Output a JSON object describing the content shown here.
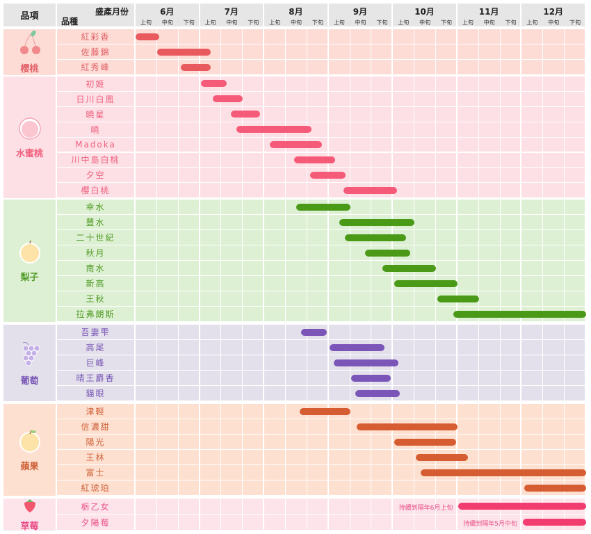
{
  "header": {
    "category": "品項",
    "variety": "品種",
    "season": "盛產月份"
  },
  "months": [
    "6月",
    "7月",
    "8月",
    "9月",
    "10月",
    "11月",
    "12月"
  ],
  "decades": [
    "上旬",
    "中旬",
    "下旬"
  ],
  "chart_data": {
    "type": "gantt",
    "title": "",
    "x_unit": "decade index from 6月上旬 (0) to 12月下旬 end (21)",
    "xlim": [
      0,
      21
    ],
    "groups": [
      {
        "name": "櫻桃",
        "icon": "cherry-icon",
        "bg": "#fddcd6",
        "bar": "#e85a5e",
        "text": "#e26268",
        "items": [
          {
            "name": "紅彩香",
            "start": 0,
            "end": 1.1
          },
          {
            "name": "佐藤錦",
            "start": 1.0,
            "end": 3.5
          },
          {
            "name": "紅秀峰",
            "start": 2.1,
            "end": 3.5
          }
        ]
      },
      {
        "name": "水蜜桃",
        "icon": "peach-icon",
        "bg": "#fde0e6",
        "bar": "#f55a78",
        "text": "#ef5f7d",
        "items": [
          {
            "name": "初姬",
            "start": 3.05,
            "end": 4.25
          },
          {
            "name": "日川白鳳",
            "start": 3.6,
            "end": 5.0
          },
          {
            "name": "曉星",
            "start": 4.45,
            "end": 5.8
          },
          {
            "name": "曉",
            "start": 4.7,
            "end": 8.2
          },
          {
            "name": "Madoka",
            "start": 6.25,
            "end": 8.7
          },
          {
            "name": "川中島白桃",
            "start": 7.4,
            "end": 9.3
          },
          {
            "name": "夕空",
            "start": 8.15,
            "end": 9.8
          },
          {
            "name": "櫻白桃",
            "start": 9.7,
            "end": 12.2
          }
        ]
      },
      {
        "name": "梨子",
        "icon": "pear-icon",
        "bg": "#def0d4",
        "bar": "#4a9a18",
        "text": "#4e9a24",
        "items": [
          {
            "name": "幸水",
            "start": 7.5,
            "end": 10.0
          },
          {
            "name": "豐水",
            "start": 9.5,
            "end": 13.0
          },
          {
            "name": "二十世紀",
            "start": 9.75,
            "end": 12.6
          },
          {
            "name": "秋月",
            "start": 10.7,
            "end": 12.8
          },
          {
            "name": "南水",
            "start": 11.5,
            "end": 14.0
          },
          {
            "name": "新高",
            "start": 12.05,
            "end": 15.0
          },
          {
            "name": "王秋",
            "start": 14.05,
            "end": 16.0
          },
          {
            "name": "拉弗朗斯",
            "start": 14.8,
            "end": 21
          }
        ]
      },
      {
        "name": "葡萄",
        "icon": "grape-icon",
        "bg": "#e3e0ec",
        "bar": "#7c55b8",
        "text": "#7a58b5",
        "items": [
          {
            "name": "吾妻雫",
            "start": 7.7,
            "end": 8.9
          },
          {
            "name": "高尾",
            "start": 9.05,
            "end": 11.6
          },
          {
            "name": "巨峰",
            "start": 9.25,
            "end": 12.25
          },
          {
            "name": "晴王麝香",
            "start": 10.05,
            "end": 11.9
          },
          {
            "name": "貓眼",
            "start": 10.25,
            "end": 12.3
          }
        ]
      },
      {
        "name": "蘋果",
        "icon": "apple-icon",
        "bg": "#fde0d0",
        "bar": "#d65d31",
        "text": "#cf623a",
        "items": [
          {
            "name": "津輕",
            "start": 7.65,
            "end": 10.0
          },
          {
            "name": "信濃甜",
            "start": 10.3,
            "end": 15.0
          },
          {
            "name": "陽光",
            "start": 12.05,
            "end": 14.95
          },
          {
            "name": "王林",
            "start": 13.05,
            "end": 15.5
          },
          {
            "name": "富士",
            "start": 13.3,
            "end": 21
          },
          {
            "name": "紅琥珀",
            "start": 18.1,
            "end": 21
          }
        ]
      },
      {
        "name": "草莓",
        "icon": "strawberry-icon",
        "bg": "#fde4ea",
        "bar": "#f23c6f",
        "text": "#e9508a",
        "items": [
          {
            "name": "栃乙女",
            "start": 15.05,
            "end": 21,
            "note": "持續到隔年6月上旬"
          },
          {
            "name": "夕陽莓",
            "start": 18.05,
            "end": 21,
            "note": "持續到隔年5月中旬"
          }
        ]
      }
    ]
  }
}
